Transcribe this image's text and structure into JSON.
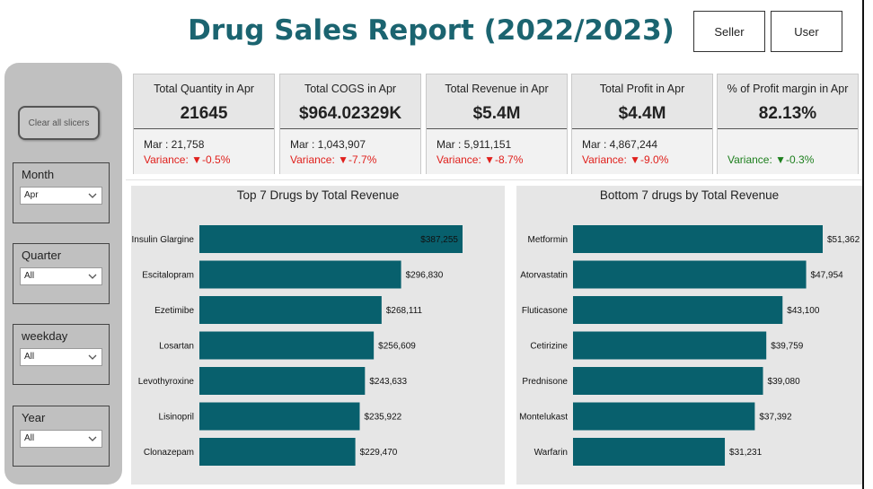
{
  "header": {
    "title": "Drug Sales Report (2022/2023)",
    "seller_label": "Seller",
    "user_label": "User"
  },
  "sidebar": {
    "clear_label": "Clear all slicers",
    "slicers": [
      {
        "label": "Month",
        "value": "Apr"
      },
      {
        "label": "Quarter",
        "value": "All"
      },
      {
        "label": "weekday",
        "value": "All"
      },
      {
        "label": "Year",
        "value": "All"
      }
    ]
  },
  "kpis": [
    {
      "title": "Total Quantity in Apr",
      "value": "21645",
      "prev": "Mar : 21,758",
      "variance": "Variance: ▼-0.5%",
      "variance_type": "neg"
    },
    {
      "title": "Total COGS in Apr",
      "value": "$964.02329K",
      "prev": "Mar : 1,043,907",
      "variance": "Variance: ▼-7.7%",
      "variance_type": "neg"
    },
    {
      "title": "Total Revenue in Apr",
      "value": "$5.4M",
      "prev": "Mar : 5,911,151",
      "variance": "Variance: ▼-8.7%",
      "variance_type": "neg"
    },
    {
      "title": "Total Profit in Apr",
      "value": "$4.4M",
      "prev": "Mar : 4,867,244",
      "variance": "Variance: ▼-9.0%",
      "variance_type": "neg"
    },
    {
      "title": "% of Profit margin in Apr",
      "value": "82.13%",
      "prev": "",
      "variance": "Variance: ▼-0.3%",
      "variance_type": "pos"
    }
  ],
  "colors": {
    "title": "#1b6470",
    "bar": "#08606d",
    "negative": "#e0201c",
    "positive": "#1d7f1d"
  },
  "chart_data": [
    {
      "type": "bar",
      "orientation": "horizontal",
      "title": "Top 7 Drugs by Total Revenue",
      "categories": [
        "Insulin Glargine",
        "Escitalopram",
        "Ezetimibe",
        "Losartan",
        "Levothyroxine",
        "Lisinopril",
        "Clonazepam"
      ],
      "values": [
        387255,
        296830,
        268111,
        256609,
        243633,
        235922,
        229470
      ],
      "labels": [
        "$387,255",
        "$296,830",
        "$268,111",
        "$256,609",
        "$243,633",
        "$235,922",
        "$229,470"
      ],
      "xlim": [
        0,
        387255
      ]
    },
    {
      "type": "bar",
      "orientation": "horizontal",
      "title": "Bottom 7 drugs by Total Revenue",
      "categories": [
        "Metformin",
        "Atorvastatin",
        "Fluticasone",
        "Cetirizine",
        "Prednisone",
        "Montelukast",
        "Warfarin"
      ],
      "values": [
        51362,
        47954,
        43100,
        39759,
        39080,
        37392,
        31231
      ],
      "labels": [
        "$51,362",
        "$47,954",
        "$43,100",
        "$39,759",
        "$39,080",
        "$37,392",
        "$31,231"
      ],
      "xlim": [
        0,
        51362
      ]
    }
  ]
}
